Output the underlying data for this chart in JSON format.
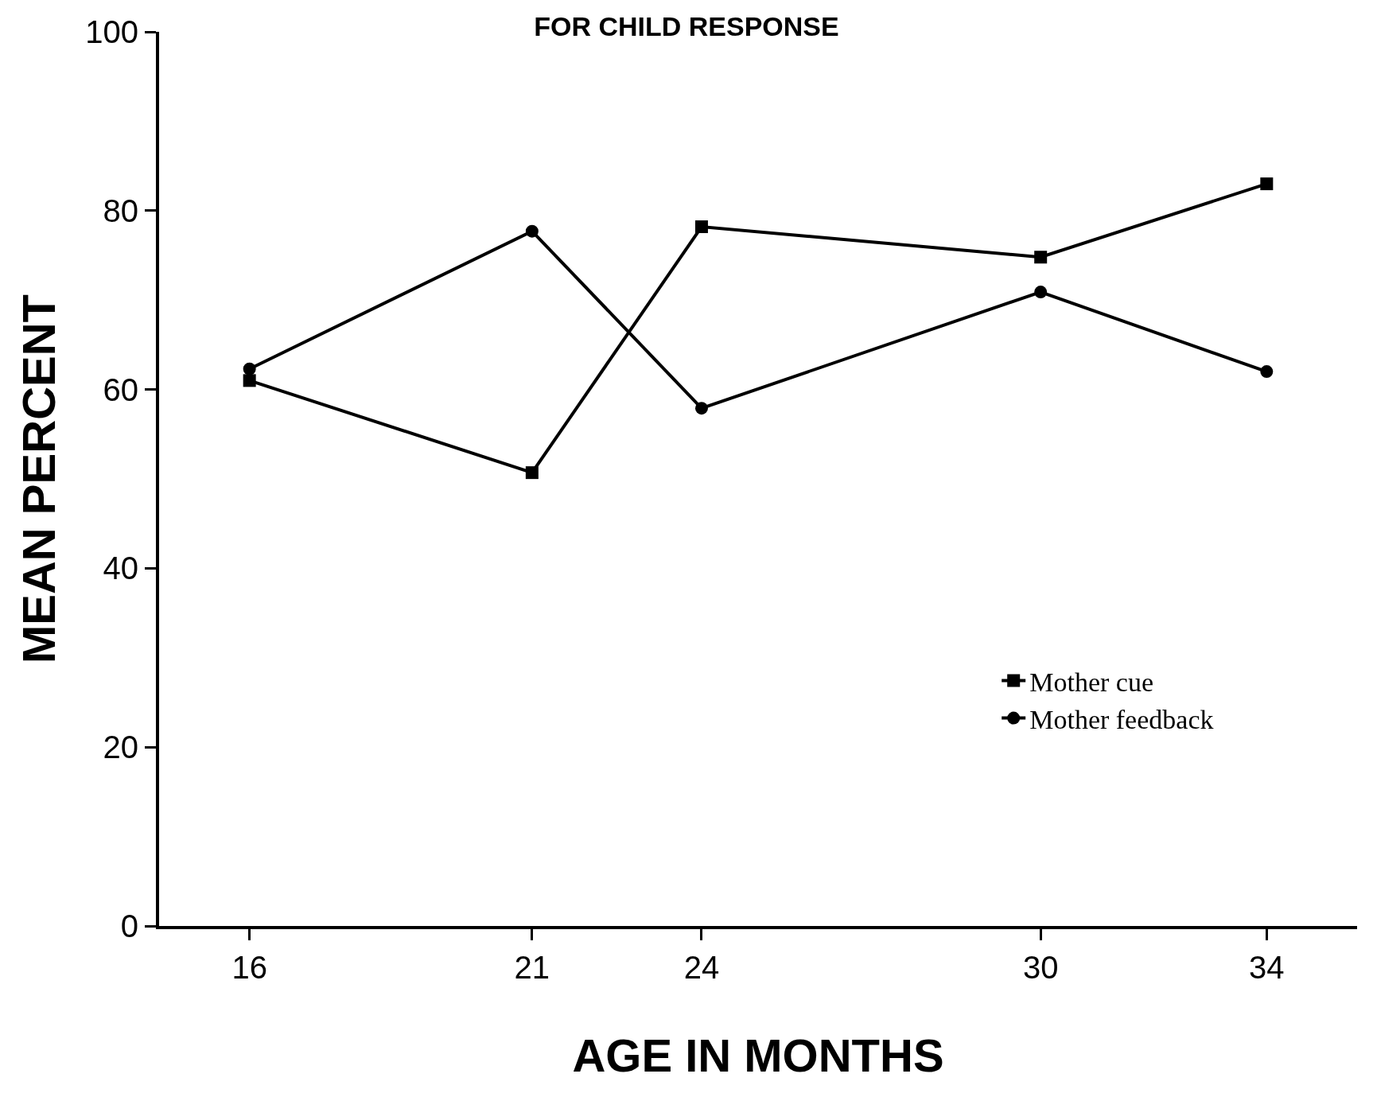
{
  "chart_data": {
    "type": "line",
    "title": "FOR CHILD RESPONSE",
    "xlabel": "AGE IN MONTHS",
    "ylabel": "MEAN PERCENT",
    "x": [
      16,
      21,
      24,
      30,
      34
    ],
    "series": [
      {
        "name": "Mother cue",
        "color": "#000000",
        "marker": "square",
        "values": [
          61,
          50.7,
          78.2,
          74.8,
          83
        ]
      },
      {
        "name": "Mother feedback",
        "color": "#000000",
        "marker": "circle",
        "values": [
          62.3,
          77.7,
          57.9,
          70.9,
          62
        ]
      }
    ],
    "xlim": [
      14.4,
      35.6
    ],
    "xticks": [
      16,
      21,
      24,
      30,
      34
    ],
    "ylim": [
      0,
      100
    ],
    "yticks": [
      0,
      20,
      40,
      60,
      80,
      100
    ],
    "legend": "bottom right",
    "line_style": "solid"
  }
}
